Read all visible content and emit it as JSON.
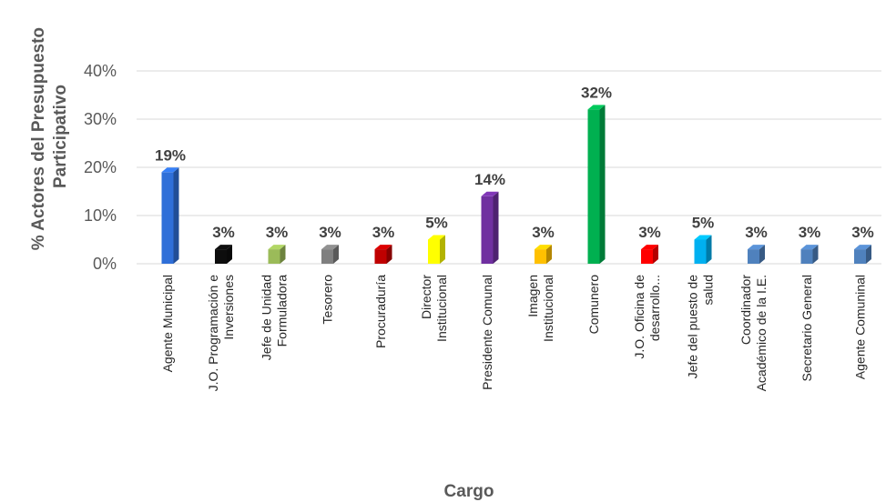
{
  "chart_data": {
    "type": "bar",
    "ylabel_lines": [
      "% Actores del Presupuesto",
      "Participativo"
    ],
    "xlabel": "Cargo",
    "ylim": [
      0,
      40
    ],
    "yticks": [
      0,
      10,
      20,
      30,
      40
    ],
    "ytick_labels": [
      "0%",
      "10%",
      "20%",
      "30%",
      "40%"
    ],
    "grid": true,
    "bar_style": "3d-column",
    "categories": [
      [
        "Agente Municipal"
      ],
      [
        "J.O. Programación e",
        "Inversiones"
      ],
      [
        "Jefe de Unidad",
        "Formuladora"
      ],
      [
        "Tesorero"
      ],
      [
        "Procuraduría"
      ],
      [
        "Director",
        "Institucional"
      ],
      [
        "Presidente Comunal"
      ],
      [
        "Imagen",
        "Institucional"
      ],
      [
        "Comunero"
      ],
      [
        "J.O. Oficina de",
        "desarrollo..."
      ],
      [
        "Jefe del puesto de",
        "salud"
      ],
      [
        "Coordinador",
        "Académico de la I.E."
      ],
      [
        "Secretario General"
      ],
      [
        "Agente Comuninal"
      ]
    ],
    "values": [
      19,
      3,
      3,
      3,
      3,
      5,
      14,
      3,
      32,
      3,
      5,
      3,
      3,
      3
    ],
    "data_labels": [
      "19%",
      "3%",
      "3%",
      "3%",
      "3%",
      "5%",
      "14%",
      "3%",
      "32%",
      "3%",
      "5%",
      "3%",
      "3%",
      "3%"
    ],
    "colors": [
      "#2F6FD8",
      "#0D0D0D",
      "#9BBB59",
      "#7F7F7F",
      "#C00000",
      "#FFFF00",
      "#7030A0",
      "#FFC000",
      "#00B050",
      "#FF0000",
      "#00B0F0",
      "#4F81BD",
      "#4F81BD",
      "#4F81BD"
    ]
  }
}
